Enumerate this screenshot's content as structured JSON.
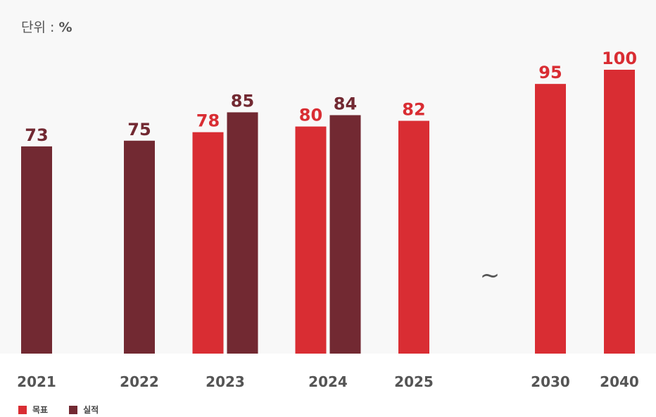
{
  "unit": {
    "label": "단위 : ",
    "value": "%"
  },
  "break_symbol": "~",
  "legend": [
    {
      "label": "목표",
      "color": "#d92d33"
    },
    {
      "label": "실적",
      "color": "#722932"
    }
  ],
  "colors": {
    "target": "#d92d33",
    "actual": "#722932",
    "axis_label": "#555555"
  },
  "chart_data": {
    "type": "bar",
    "ylim": [
      0,
      100
    ],
    "categories": [
      "2021",
      "2022",
      "2023",
      "2024",
      "2025",
      "2030",
      "2040"
    ],
    "series": [
      {
        "name": "목표",
        "values": [
          null,
          null,
          78,
          80,
          82,
          95,
          100
        ]
      },
      {
        "name": "실적",
        "values": [
          73,
          75,
          85,
          84,
          null,
          null,
          null
        ]
      }
    ],
    "axis_break_after": "2025"
  }
}
